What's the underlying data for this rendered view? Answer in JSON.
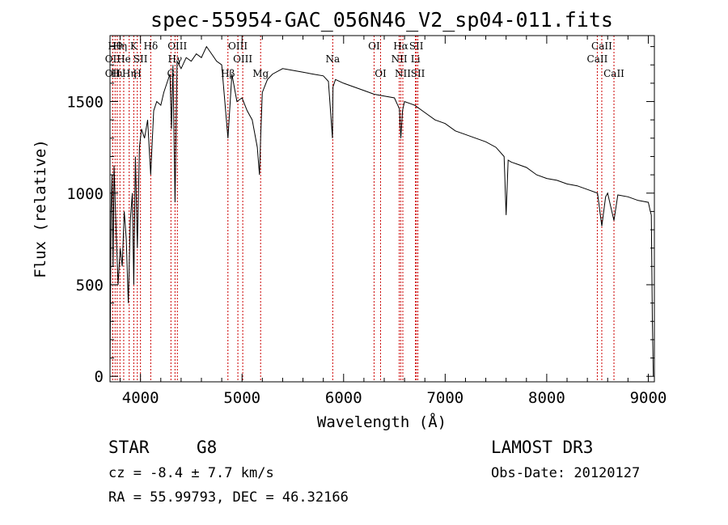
{
  "chart_data": {
    "type": "line",
    "title": "spec-55954-GAC_056N46_V2_sp04-011.fits",
    "xlabel": "Wavelength (Å)",
    "ylabel": "Flux (relative)",
    "xlim": [
      3700,
      9060
    ],
    "ylim": [
      -30,
      1860
    ],
    "xticks": [
      4000,
      5000,
      6000,
      7000,
      8000,
      9000
    ],
    "xtick_labels": [
      "4000",
      "5000",
      "6000",
      "7000",
      "8000",
      "9000"
    ],
    "yticks": [
      0,
      500,
      1000,
      1500
    ],
    "ytick_labels": [
      "0",
      "500",
      "1000",
      "1500"
    ],
    "series": [
      {
        "name": "spectrum",
        "x": [
          3700,
          3710,
          3720,
          3730,
          3740,
          3760,
          3780,
          3800,
          3820,
          3840,
          3860,
          3880,
          3900,
          3920,
          3934,
          3950,
          3969,
          3990,
          4010,
          4040,
          4070,
          4101,
          4130,
          4160,
          4200,
          4230,
          4260,
          4290,
          4305,
          4320,
          4340,
          4360,
          4400,
          4450,
          4500,
          4550,
          4600,
          4650,
          4700,
          4750,
          4800,
          4861,
          4900,
          4950,
          5000,
          5050,
          5100,
          5150,
          5172,
          5183,
          5200,
          5250,
          5300,
          5400,
          5500,
          5600,
          5700,
          5800,
          5850,
          5890,
          5896,
          5920,
          6000,
          6100,
          6200,
          6300,
          6400,
          6500,
          6550,
          6563,
          6580,
          6600,
          6700,
          6800,
          6900,
          7000,
          7100,
          7200,
          7300,
          7400,
          7500,
          7580,
          7600,
          7620,
          7650,
          7700,
          7800,
          7900,
          8000,
          8100,
          8200,
          8300,
          8400,
          8500,
          8542,
          8580,
          8600,
          8662,
          8700,
          8800,
          8900,
          9000,
          9020,
          9030,
          9040,
          9050
        ],
        "values": [
          0,
          900,
          1100,
          600,
          1150,
          800,
          500,
          700,
          600,
          900,
          750,
          400,
          850,
          1000,
          500,
          1200,
          700,
          1250,
          1350,
          1300,
          1400,
          1100,
          1450,
          1500,
          1480,
          1550,
          1600,
          1650,
          1350,
          1700,
          950,
          1720,
          1680,
          1740,
          1720,
          1760,
          1740,
          1800,
          1760,
          1720,
          1700,
          1300,
          1650,
          1500,
          1520,
          1450,
          1400,
          1250,
          1100,
          1300,
          1550,
          1620,
          1650,
          1680,
          1670,
          1660,
          1650,
          1640,
          1610,
          1300,
          1580,
          1620,
          1600,
          1580,
          1560,
          1540,
          1530,
          1520,
          1460,
          1300,
          1450,
          1500,
          1480,
          1440,
          1400,
          1380,
          1340,
          1320,
          1300,
          1280,
          1250,
          1200,
          880,
          1180,
          1170,
          1160,
          1140,
          1100,
          1080,
          1070,
          1050,
          1040,
          1020,
          1000,
          820,
          980,
          1000,
          850,
          990,
          980,
          960,
          950,
          900,
          880,
          300,
          0
        ]
      }
    ],
    "spectral_lines": [
      {
        "wavelength": 3727,
        "label": "OII",
        "row": 2
      },
      {
        "wavelength": 3727,
        "label": "OII",
        "row": 3
      },
      {
        "wavelength": 3750,
        "label": "Hθ",
        "row": 1
      },
      {
        "wavelength": 3771,
        "label": "Hι",
        "row": 3
      },
      {
        "wavelength": 3798,
        "label": "Hη",
        "row": 1
      },
      {
        "wavelength": 3835,
        "label": "He",
        "row": 2
      },
      {
        "wavelength": 3889,
        "label": "Hη",
        "row": 3
      },
      {
        "wavelength": 3934,
        "label": "K",
        "row": 1
      },
      {
        "wavelength": 3969,
        "label": "H",
        "row": 3
      },
      {
        "wavelength": 4000,
        "label": "SII",
        "row": 2
      },
      {
        "wavelength": 4101,
        "label": "Hδ",
        "row": 1
      },
      {
        "wavelength": 4300,
        "label": "G",
        "row": 3
      },
      {
        "wavelength": 4340,
        "label": "Hγ",
        "row": 2
      },
      {
        "wavelength": 4363,
        "label": "OIII",
        "row": 1
      },
      {
        "wavelength": 4861,
        "label": "Hβ",
        "row": 3
      },
      {
        "wavelength": 4959,
        "label": "OIII",
        "row": 1
      },
      {
        "wavelength": 5007,
        "label": "OIII",
        "row": 2
      },
      {
        "wavelength": 5183,
        "label": "Mg",
        "row": 3
      },
      {
        "wavelength": 5893,
        "label": "Na",
        "row": 2
      },
      {
        "wavelength": 6300,
        "label": "OI",
        "row": 1
      },
      {
        "wavelength": 6364,
        "label": "OI",
        "row": 3
      },
      {
        "wavelength": 6548,
        "label": "NII",
        "row": 2
      },
      {
        "wavelength": 6563,
        "label": "Hα",
        "row": 1
      },
      {
        "wavelength": 6583,
        "label": "NII",
        "row": 3
      },
      {
        "wavelength": 6708,
        "label": "Li",
        "row": 2
      },
      {
        "wavelength": 6716,
        "label": "SII",
        "row": 1
      },
      {
        "wavelength": 6731,
        "label": "SII",
        "row": 3
      },
      {
        "wavelength": 8498,
        "label": "CaII",
        "row": 2
      },
      {
        "wavelength": 8542,
        "label": "CaII",
        "row": 1
      },
      {
        "wavelength": 8662,
        "label": "CaII",
        "row": 3
      }
    ]
  },
  "info": {
    "object_class": "STAR",
    "subclass": "G8",
    "velocity": "cz = -8.4 ± 7.7 km/s",
    "coords": "RA =  55.99793, DEC =  46.32166",
    "survey": "LAMOST DR3",
    "obs_date": "Obs-Date: 20120127"
  },
  "colors": {
    "axis": "#000000",
    "spectrum": "#000000",
    "line_marker": "#cc0000"
  }
}
